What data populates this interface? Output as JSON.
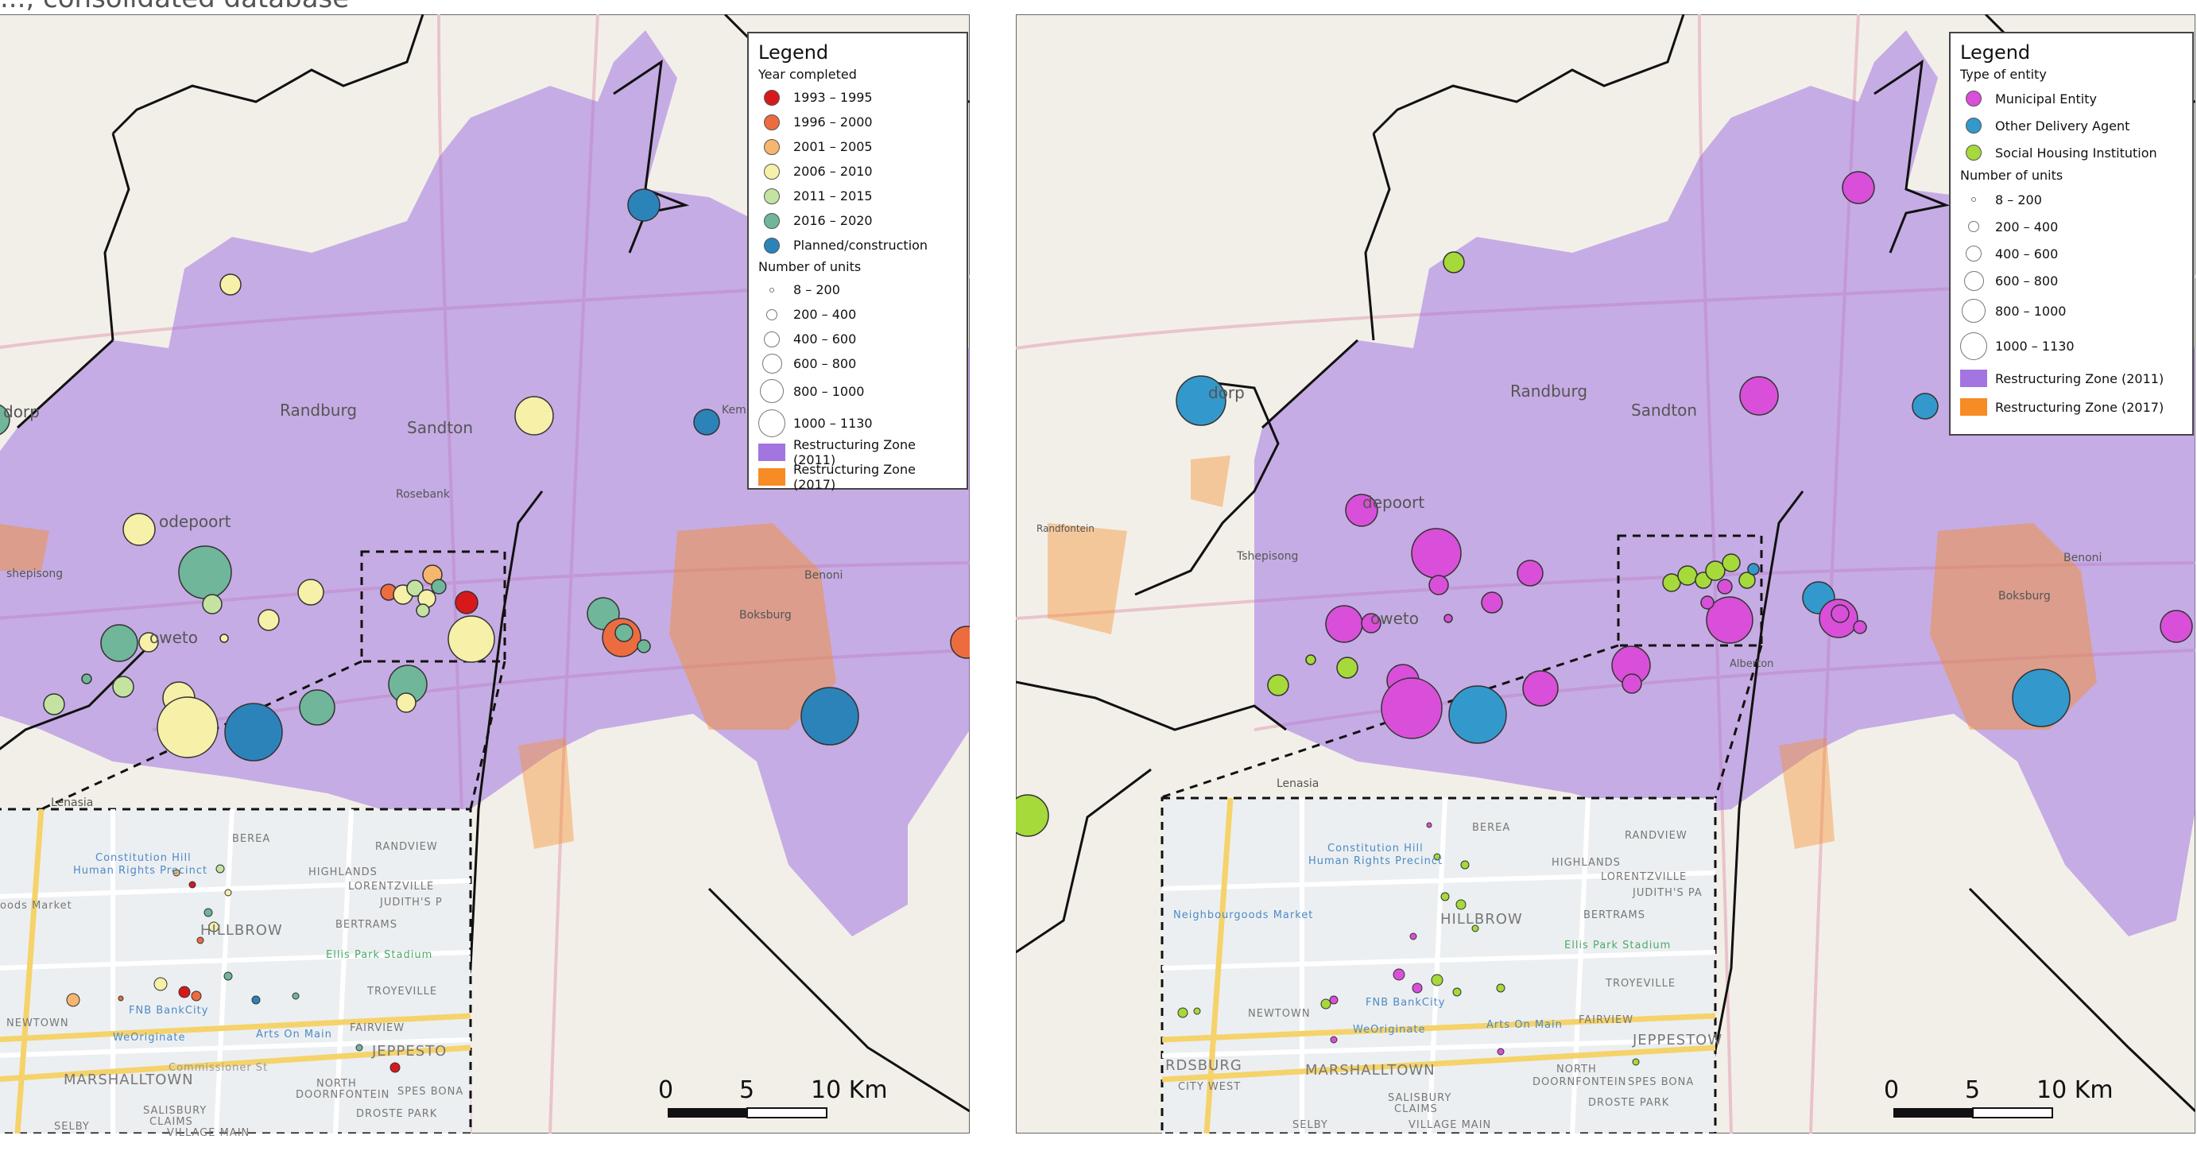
{
  "caption": "..., consolidated database",
  "colors": {
    "y1993": "#d7191c",
    "y1996": "#ec6c40",
    "y2001": "#f6b66d",
    "y2006": "#f6f0a8",
    "y2011": "#c4e3a1",
    "y2016": "#6fb69a",
    "planned": "#2b83ba",
    "municipal": "#d94fd9",
    "other": "#3399cc",
    "social": "#a6d93a",
    "zone2011": "#a275e0",
    "zone2017": "#f78b24"
  },
  "left": {
    "legend": {
      "title": "Legend",
      "subtitle1": "Year completed",
      "years": [
        {
          "label": "1993 – 1995",
          "color": "#d7191c"
        },
        {
          "label": "1996 – 2000",
          "color": "#ec6c40"
        },
        {
          "label": "2001 – 2005",
          "color": "#f6b66d"
        },
        {
          "label": "2006 – 2010",
          "color": "#f6f0a8"
        },
        {
          "label": "2011 – 2015",
          "color": "#c4e3a1"
        },
        {
          "label": "2016 – 2020",
          "color": "#6fb69a"
        },
        {
          "label": "Planned/construction",
          "color": "#2b83ba"
        }
      ],
      "subtitle2": "Number of units",
      "sizes": [
        "8 – 200",
        "200 – 400",
        "400 – 600",
        "600 – 800",
        "800 – 1000",
        "1000 – 1130"
      ],
      "zone2011": "Restructuring Zone (2011)",
      "zone2017": "Restructuring Zone (2017)"
    },
    "towns": {
      "randburg": "Randburg",
      "sandton": "Sandton",
      "rosebank": "Rosebank",
      "roodepoort": "odepoort",
      "soweto": "oweto",
      "tshepisong": "shepisong",
      "boksburg": "Boksburg",
      "benoni": "Benoni",
      "lenasia": "Lenasia",
      "kempton": "Kempton P",
      "krugersdorp": "dorp"
    },
    "inset": [
      "BEREA",
      "RANDVIEW",
      "HIGHLANDS",
      "LORENTZVILLE",
      "JUDITH'S P",
      "BERTRAMS",
      "HILLBROW",
      "Constitution Hill",
      "Human Rights Precinct",
      "Ellis Park Stadium",
      "TROYEVILLE",
      "NEWTOWN",
      "FNB BankCity",
      "WeOriginate",
      "Arts On Main",
      "FAIRVIEW",
      "JEPPESTO",
      "MARSHALLTOWN",
      "NORTH",
      "DOORNFONTEIN",
      "SPES BONA",
      "SALISBURY",
      "CLAIMS",
      "DROSTE PARK",
      "SELBY",
      "VILLAGE MAIN",
      "Commissioner St",
      "oods Market"
    ],
    "scale": {
      "s0": "0",
      "s5": "5",
      "s10": "10 Km"
    }
  },
  "right": {
    "legend": {
      "title": "Legend",
      "subtitle1": "Type of entity",
      "types": [
        {
          "label": "Municipal Entity",
          "color": "#d94fd9"
        },
        {
          "label": "Other Delivery Agent",
          "color": "#3399cc"
        },
        {
          "label": "Social Housing Institution",
          "color": "#a6d93a"
        }
      ],
      "subtitle2": "Number of units",
      "sizes": [
        "8 – 200",
        "200 – 400",
        "400 – 600",
        "600 – 800",
        "800 – 1000",
        "1000 – 1130"
      ],
      "zone2011": "Restructuring Zone (2011)",
      "zone2017": "Restructuring Zone (2017)"
    },
    "towns": {
      "randburg": "Randburg",
      "sandton": "Sandton",
      "krugersdorp": "dorp",
      "roodepoort": "depoort",
      "soweto": "oweto",
      "tshepisong": "Tshepisong",
      "boksburg": "Boksburg",
      "benoni": "Benoni",
      "lenasia": "Lenasia",
      "randfontein": "Randfontein",
      "alberton": "Alberton"
    },
    "inset": [
      "BEREA",
      "RANDVIEW",
      "HIGHLANDS",
      "LORENTZVILLE",
      "JUDITH'S PA",
      "BERTRAMS",
      "HILLBROW",
      "Constitution Hill",
      "Human Rights Precinct",
      "Neighbourgoods Market",
      "Ellis Park Stadium",
      "TROYEVILLE",
      "NEWTOWN",
      "FNB BankCity",
      "WeOriginate",
      "Arts On Main",
      "FAIRVIEW",
      "JEPPESTOW",
      "RDSBURG",
      "MARSHALLTOWN",
      "CITY WEST",
      "NORTH",
      "DOORNFONTEIN",
      "SPES BONA",
      "SALISBURY",
      "CLAIMS",
      "DROSTE PARK",
      "SELBY",
      "VILLAGE MAIN"
    ],
    "scale": {
      "s0": "0",
      "s5": "5",
      "s10": "10 Km"
    }
  }
}
